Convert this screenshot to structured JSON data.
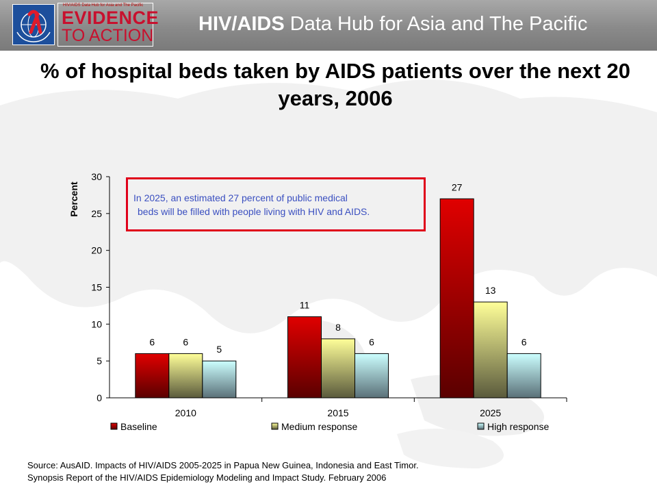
{
  "header": {
    "logo_subtitle": "HIV/AIDS Data Hub for Asia and The Pacific",
    "logo_line1": "EVIDENCE",
    "logo_line2": "TO ACTION",
    "title_bold": "HIV/AIDS",
    "title_rest": " Data Hub for Asia and The Pacific"
  },
  "colors": {
    "header_bg": "#8c8c8c",
    "brand_red": "#c8102e",
    "callout_border": "#e0001a",
    "callout_text": "#3a4fc0"
  },
  "callout": {
    "line1": "In 2025,  an estimated 27 percent of public medical",
    "line2": "beds will be filled with people  living with HIV and AIDS."
  },
  "source": {
    "line1": "Source: AusAID. Impacts of HIV/AIDS 2005-2025 in Papua New Guinea, Indonesia and East Timor.",
    "line2": "Synopsis Report of the HIV/AIDS Epidemiology Modeling and Impact Study. February 2006"
  },
  "chart_data": {
    "type": "bar",
    "title": "% of hospital beds taken by AIDS patients over the next 20 years, 2006",
    "ylabel": "Percent",
    "xlabel": "",
    "ylim": [
      0,
      30
    ],
    "yticks": [
      "0",
      "5",
      "10",
      "15",
      "20",
      "25",
      "30"
    ],
    "categories": [
      "2010",
      "2015",
      "2025"
    ],
    "series": [
      {
        "name": "Baseline",
        "values": [
          6,
          11,
          27
        ],
        "labels": [
          "6",
          "11",
          "27"
        ],
        "color": "#e00000"
      },
      {
        "name": "Medium response",
        "values": [
          6,
          8,
          13
        ],
        "labels": [
          "6",
          "8",
          "13"
        ],
        "color": "#ffff99"
      },
      {
        "name": "High response",
        "values": [
          5,
          6,
          6
        ],
        "labels": [
          "5",
          "6",
          "6"
        ],
        "color": "#ccffff"
      }
    ],
    "legend_position": "bottom",
    "grid": false
  }
}
